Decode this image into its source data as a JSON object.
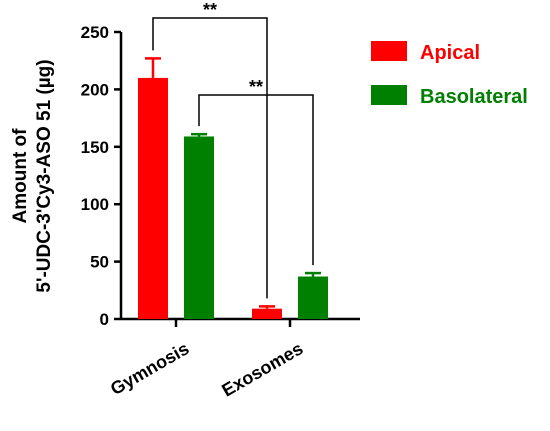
{
  "chart_data": {
    "type": "bar",
    "categories": [
      "Gymnosis",
      "Exosomes"
    ],
    "ylabel_lines": [
      "Amount of",
      "5'-UDC-3'Cy3-ASO 51 (µg)"
    ],
    "ylim": [
      0,
      250
    ],
    "yticks": [
      0,
      50,
      100,
      150,
      200,
      250
    ],
    "grid": false,
    "legend_position": "top-right",
    "series": [
      {
        "name": "Apical",
        "color": "#ff0000",
        "values": [
          210,
          9
        ],
        "errors": [
          17,
          2
        ]
      },
      {
        "name": "Basolateral",
        "color": "#008000",
        "values": [
          159,
          37
        ],
        "errors": [
          2,
          3
        ]
      }
    ],
    "significance": [
      {
        "label": "**",
        "from": {
          "series": 0,
          "category": 0
        },
        "to": {
          "series": 0,
          "category": 1
        }
      },
      {
        "label": "**",
        "from": {
          "series": 1,
          "category": 0
        },
        "to": {
          "series": 1,
          "category": 1
        }
      }
    ]
  }
}
